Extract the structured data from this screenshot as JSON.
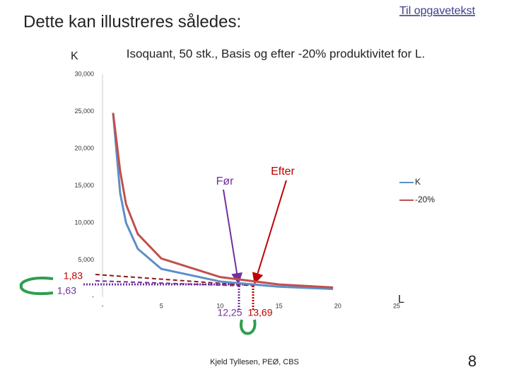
{
  "slide": {
    "title": "Dette kan illustreres således:",
    "link": "Til opgavetekst",
    "footer": "Kjeld Tyllesen, PEØ, CBS",
    "page": "8"
  },
  "chart_data": {
    "type": "line",
    "title": "Isoquant, 50 stk., Basis og efter -20% produktivitet for L.",
    "y_label": "K",
    "x_label": "L",
    "x": [
      0.9,
      1.5,
      2,
      3,
      5,
      10,
      15,
      19.6
    ],
    "series": [
      {
        "name": "K",
        "color": "#5b8fc9",
        "values": [
          24800,
          14000,
          10000,
          6500,
          3800,
          2100,
          1400,
          1100
        ]
      },
      {
        "name": "-20%",
        "color": "#c0504d",
        "values": [
          24800,
          17000,
          12500,
          8500,
          5200,
          2700,
          1700,
          1300
        ]
      }
    ],
    "xlim": [
      0,
      25
    ],
    "ylim": [
      0,
      30000
    ],
    "xticks": [
      {
        "value": 0,
        "label": "-"
      },
      5,
      10,
      15,
      20,
      25
    ],
    "yticks": [
      {
        "value": 0,
        "label": "-"
      },
      {
        "value": 5000,
        "label": "5,000"
      },
      {
        "value": 10000,
        "label": "10,000"
      },
      {
        "value": 15000,
        "label": "15,000"
      },
      {
        "value": 20000,
        "label": "20,000"
      },
      {
        "value": 25000,
        "label": "25,000"
      },
      {
        "value": 30000,
        "label": "30,000"
      }
    ],
    "annotations": [
      "Før",
      "Efter",
      "1,83",
      "1,63",
      "12,25",
      "13,69"
    ],
    "legend": "right"
  }
}
